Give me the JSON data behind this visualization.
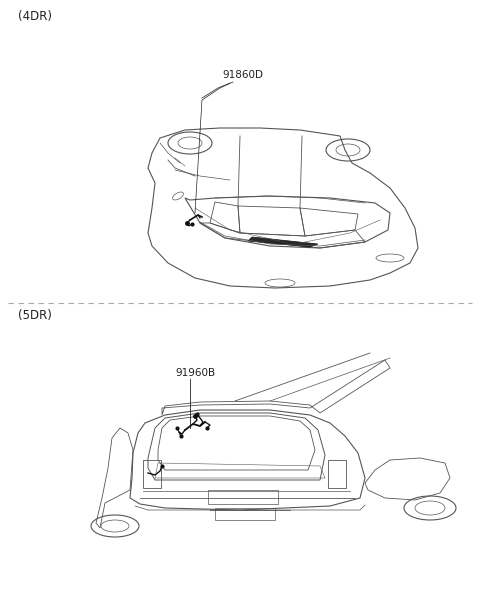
{
  "background_color": "#ffffff",
  "label_4dr": "(4DR)",
  "label_5dr": "(5DR)",
  "part_label_top": "91860D",
  "part_label_bottom": "91960B",
  "divider_color": "#aaaaaa",
  "text_color": "#222222",
  "line_color": "#555555",
  "wiring_color": "#111111",
  "font_size_label": 8.5,
  "font_size_part": 7.5
}
